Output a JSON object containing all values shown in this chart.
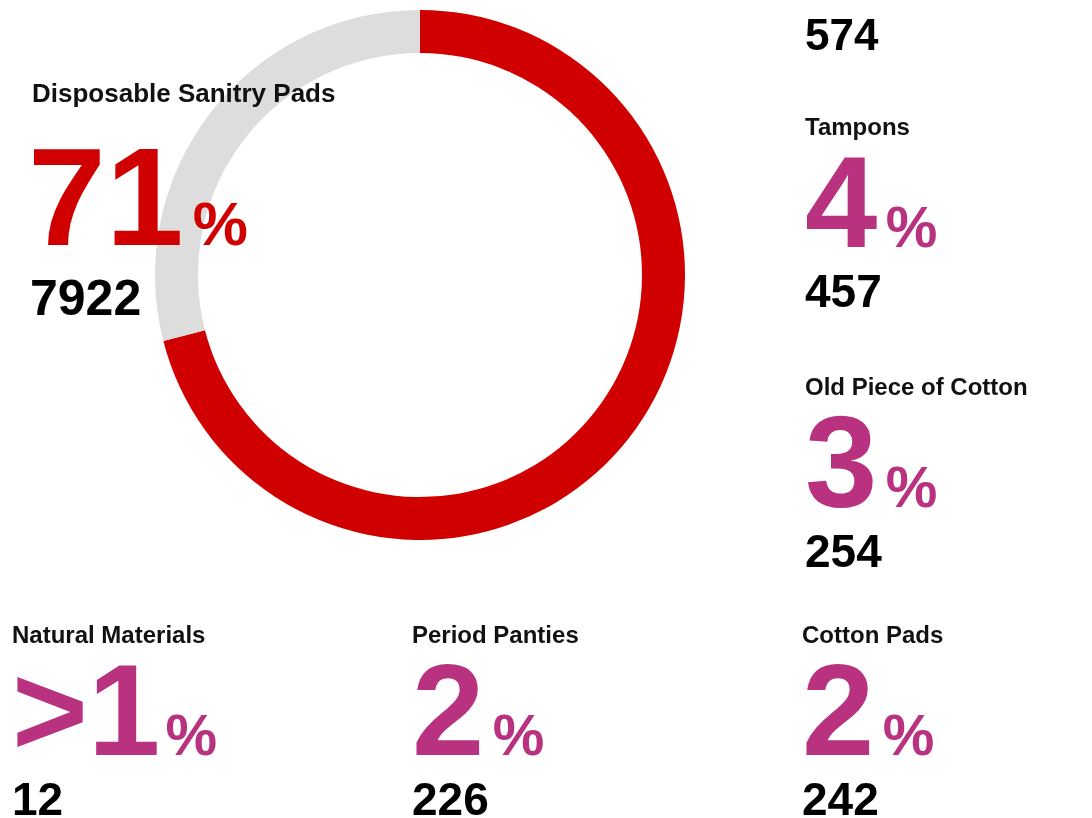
{
  "chart_data": [
    {
      "type": "donut",
      "categories": [
        "Disposable Sanitry Pads",
        null
      ],
      "values": [
        71,
        29
      ],
      "colors": [
        "#d10000",
        "#dddddd"
      ],
      "value_labels": [
        "71",
        null
      ],
      "annotations": [
        "%",
        "7922"
      ],
      "legend": false
    },
    {
      "type": "other",
      "color": "#b8327f",
      "annotations": [
        "574",
        "Tampons",
        "4",
        "%",
        "457",
        "Old Piece of Cotton",
        "3",
        "%",
        "254",
        "Natural Materials",
        ">1",
        "%",
        "12",
        "Period Panties",
        "2",
        "%",
        "226",
        "Cotton Pads",
        "2",
        "%",
        "242"
      ]
    }
  ]
}
